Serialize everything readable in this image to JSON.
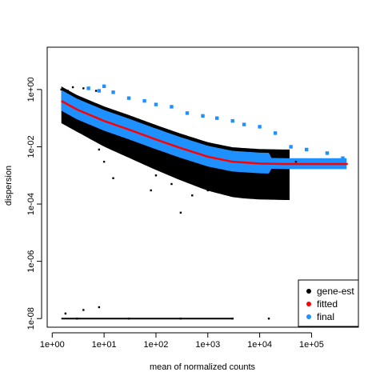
{
  "chart_data": {
    "type": "scatter",
    "title": "",
    "xlabel": "mean of normalized counts",
    "ylabel": "dispersion",
    "x_scale": "log10",
    "y_scale": "log10",
    "xlim": [
      0.8,
      800000
    ],
    "ylim": [
      5e-09,
      30
    ],
    "x_ticks": [
      {
        "value": 1,
        "label": "1e+00"
      },
      {
        "value": 10,
        "label": "1e+01"
      },
      {
        "value": 100,
        "label": "1e+02"
      },
      {
        "value": 1000,
        "label": "1e+03"
      },
      {
        "value": 10000,
        "label": "1e+04"
      },
      {
        "value": 100000,
        "label": "1e+05"
      }
    ],
    "y_ticks": [
      {
        "value": 1e-08,
        "label": "1e-08"
      },
      {
        "value": 1e-06,
        "label": "1e-06"
      },
      {
        "value": 0.0001,
        "label": "1e-04"
      },
      {
        "value": 0.01,
        "label": "1e-02"
      },
      {
        "value": 1,
        "label": "1e+00"
      }
    ],
    "legend": {
      "position": "bottom-right",
      "entries": [
        {
          "label": "gene-est",
          "color": "#000000"
        },
        {
          "label": "fitted",
          "color": "#ff0000"
        },
        {
          "label": "final",
          "color": "#1e90ff"
        }
      ]
    },
    "series": [
      {
        "name": "fitted",
        "type": "line",
        "color": "#ff0000",
        "points": [
          [
            1.5,
            0.4
          ],
          [
            3,
            0.2
          ],
          [
            10,
            0.08
          ],
          [
            30,
            0.04
          ],
          [
            100,
            0.018
          ],
          [
            300,
            0.009
          ],
          [
            1000,
            0.0045
          ],
          [
            3000,
            0.003
          ],
          [
            10000,
            0.0026
          ],
          [
            30000,
            0.0025
          ],
          [
            100000,
            0.0025
          ],
          [
            500000,
            0.0025
          ]
        ]
      },
      {
        "name": "gene-est",
        "type": "scatter",
        "color": "#000000",
        "points": [
          [
            1.5,
            1.0
          ],
          [
            2,
            0.9
          ],
          [
            2.5,
            1.2
          ],
          [
            4,
            1.1
          ],
          [
            7,
            0.9
          ],
          [
            5,
            0.05
          ],
          [
            8,
            0.008
          ],
          [
            10,
            0.003
          ],
          [
            15,
            0.0008
          ],
          [
            20,
            0.015
          ],
          [
            50,
            0.006
          ],
          [
            80,
            0.0003
          ],
          [
            100,
            0.001
          ],
          [
            200,
            0.0005
          ],
          [
            300,
            5e-05
          ],
          [
            500,
            0.0002
          ],
          [
            1000,
            0.0003
          ],
          [
            2000,
            0.0004
          ],
          [
            3000,
            0.0005
          ],
          [
            5000,
            0.0004
          ],
          [
            8000,
            0.0006
          ],
          [
            20000,
            0.001
          ],
          [
            50000,
            0.003
          ],
          [
            3,
            1e-08
          ],
          [
            30,
            1e-08
          ],
          [
            300,
            1e-08
          ],
          [
            3000,
            1e-08
          ],
          [
            15000,
            1e-08
          ],
          [
            1.8,
            1.5e-08
          ],
          [
            4,
            2e-08
          ],
          [
            8,
            2.5e-08
          ]
        ]
      },
      {
        "name": "final",
        "type": "scatter",
        "color": "#1e90ff",
        "points": [
          [
            3,
            0.4
          ],
          [
            5,
            1.1
          ],
          [
            8,
            0.9
          ],
          [
            10,
            1.3
          ],
          [
            15,
            0.8
          ],
          [
            30,
            0.5
          ],
          [
            60,
            0.4
          ],
          [
            100,
            0.3
          ],
          [
            200,
            0.25
          ],
          [
            400,
            0.15
          ],
          [
            800,
            0.12
          ],
          [
            1500,
            0.1
          ],
          [
            3000,
            0.08
          ],
          [
            5000,
            0.06
          ],
          [
            10000,
            0.05
          ],
          [
            20000,
            0.03
          ],
          [
            40000,
            0.01
          ],
          [
            80000,
            0.008
          ],
          [
            200000,
            0.006
          ],
          [
            400000,
            0.004
          ]
        ]
      }
    ],
    "annotations": [
      {
        "desc": "dense black band spanning the full x range",
        "xmin": 1.5,
        "xmax": 40000
      },
      {
        "desc": "dense blue band around the fitted curve",
        "xmin": 1.5,
        "xmax": 500000
      }
    ]
  }
}
